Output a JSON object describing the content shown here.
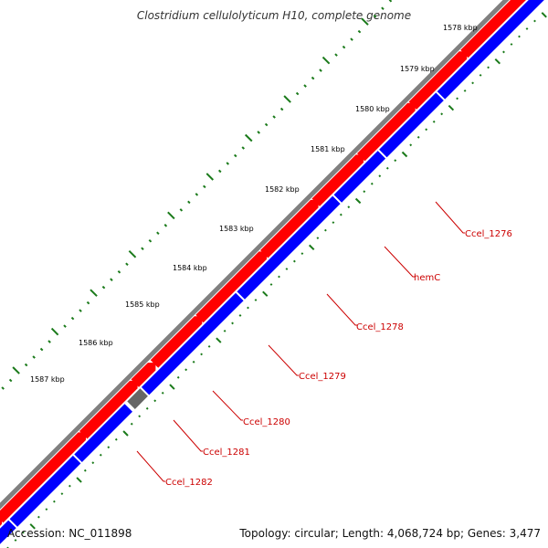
{
  "header": {
    "title": "Clostridium cellulolyticum H10, complete genome"
  },
  "footer": {
    "accession": "Accession: NC_011898",
    "summary": "Topology: circular; Length: 4,068,724 bp; Genes: 3,477"
  },
  "scale_labels": [
    "1578 kbp",
    "1579 kbp",
    "1580 kbp",
    "1581 kbp",
    "1582 kbp",
    "1583 kbp",
    "1584 kbp",
    "1585 kbp",
    "1586 kbp",
    "1587 kbp"
  ],
  "genes": [
    {
      "name": "Ccel_1276"
    },
    {
      "name": "hemC"
    },
    {
      "name": "Ccel_1278"
    },
    {
      "name": "Ccel_1279"
    },
    {
      "name": "Ccel_1280"
    },
    {
      "name": "Ccel_1281"
    },
    {
      "name": "Ccel_1282"
    }
  ],
  "colors": {
    "backbone": "#808080",
    "forward_strand": "#ff0000",
    "reverse_strand": "#0000ff",
    "rna_gene": "#666666",
    "label": "#cc0000",
    "tick": "#1a7a1a"
  }
}
